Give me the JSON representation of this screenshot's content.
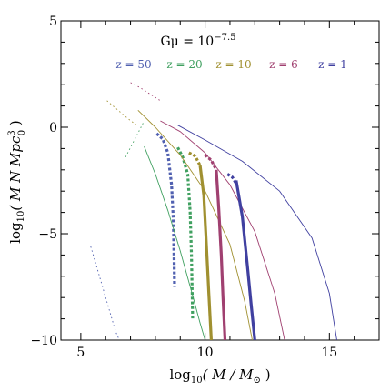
{
  "chart_data": {
    "type": "line",
    "title": "Gμ = 10",
    "title_exponent": "−7.5",
    "xlabel_prefix": "log",
    "xlabel_sub": "10",
    "xlabel_body": "( M / M",
    "xlabel_sun": "⊙",
    "xlabel_close": " )",
    "ylabel_prefix": "log",
    "ylabel_sub": "10",
    "ylabel_body": "( M N Mpc",
    "ylabel_sup": "3",
    "ylabel_subsup": "0",
    "ylabel_close": " )",
    "xlim": [
      4.2,
      17.0
    ],
    "ylim": [
      -10,
      5
    ],
    "xticks": [
      5,
      10,
      15
    ],
    "xtick_labels": [
      "5",
      "10",
      "15"
    ],
    "yticks": [
      -10,
      -5,
      0,
      5
    ],
    "ytick_labels": [
      "−10",
      "−5",
      "0",
      "5"
    ],
    "legend_position": "top",
    "colors": {
      "z50": "#5060b0",
      "z20": "#40a060",
      "z10": "#a09030",
      "z6": "#a04070",
      "z1": "#4040a0"
    },
    "series": [
      {
        "name": "z = 50",
        "color": "#5060b0",
        "style": "dotted-thin",
        "x": [
          5.4,
          5.6,
          5.8,
          6.0,
          6.2,
          6.4,
          6.55
        ],
        "y": [
          -5.6,
          -6.4,
          -7.2,
          -8.0,
          -8.8,
          -9.6,
          -10
        ]
      },
      {
        "name": "z = 50",
        "color": "#5060b0",
        "style": "dotted-thick",
        "x": [
          8.05,
          8.3,
          8.5,
          8.65,
          8.72,
          8.75,
          8.77
        ],
        "y": [
          -0.3,
          -0.55,
          -1.2,
          -2.7,
          -4.3,
          -6.0,
          -7.5
        ]
      },
      {
        "name": "z = 20",
        "color": "#40a060",
        "style": "dotted-thin",
        "x": [
          6.8,
          7.0,
          7.2,
          7.4,
          7.55
        ],
        "y": [
          -1.4,
          -0.95,
          -0.5,
          -0.05,
          0.3
        ]
      },
      {
        "name": "z = 20",
        "color": "#40a060",
        "style": "thin",
        "x": [
          7.55,
          8.0,
          8.5,
          9.0,
          9.5,
          9.8,
          10.0
        ],
        "y": [
          -0.9,
          -2.2,
          -3.9,
          -5.8,
          -7.9,
          -9.2,
          -10
        ]
      },
      {
        "name": "z = 20",
        "color": "#40a060",
        "style": "dotted-thick",
        "x": [
          8.9,
          9.1,
          9.3,
          9.4,
          9.45,
          9.48,
          9.5
        ],
        "y": [
          -0.95,
          -1.4,
          -2.2,
          -4.0,
          -6.0,
          -7.8,
          -9.0
        ]
      },
      {
        "name": "z = 10",
        "color": "#a09030",
        "style": "dotted-thin",
        "x": [
          6.05,
          6.3,
          6.6,
          6.9,
          7.3
        ],
        "y": [
          1.25,
          1.0,
          0.7,
          0.4,
          0.05
        ]
      },
      {
        "name": "z = 10",
        "color": "#a09030",
        "style": "thin",
        "x": [
          7.3,
          8.0,
          9.0,
          10.0,
          11.0,
          11.6,
          11.9
        ],
        "y": [
          0.8,
          0.0,
          -1.3,
          -3.0,
          -5.5,
          -8.2,
          -10
        ]
      },
      {
        "name": "z = 10",
        "color": "#a09030",
        "style": "dotted-thick",
        "x": [
          9.35,
          9.6,
          9.8
        ],
        "y": [
          -1.2,
          -1.35,
          -1.8
        ]
      },
      {
        "name": "z = 10",
        "color": "#a09030",
        "style": "thick",
        "x": [
          9.8,
          9.95,
          10.05,
          10.15,
          10.25
        ],
        "y": [
          -1.8,
          -3.2,
          -5.5,
          -7.8,
          -10
        ]
      },
      {
        "name": "z = 6",
        "color": "#a04070",
        "style": "dotted-thin",
        "x": [
          7.0,
          7.4,
          7.8,
          8.2
        ],
        "y": [
          2.1,
          1.85,
          1.55,
          1.25
        ]
      },
      {
        "name": "z = 6",
        "color": "#a04070",
        "style": "thin",
        "x": [
          8.2,
          9.0,
          10.0,
          11.0,
          12.0,
          12.8,
          13.2
        ],
        "y": [
          0.3,
          -0.2,
          -1.2,
          -2.7,
          -4.9,
          -7.8,
          -10
        ]
      },
      {
        "name": "z = 6",
        "color": "#a04070",
        "style": "dotted-thick",
        "x": [
          10.0,
          10.25,
          10.45
        ],
        "y": [
          -1.3,
          -1.55,
          -2.0
        ]
      },
      {
        "name": "z = 6",
        "color": "#a04070",
        "style": "thick",
        "x": [
          10.45,
          10.55,
          10.65,
          10.72,
          10.8
        ],
        "y": [
          -2.0,
          -3.8,
          -6.0,
          -8.0,
          -10
        ]
      },
      {
        "name": "z = 1",
        "color": "#4040a0",
        "style": "thin",
        "x": [
          8.9,
          10.0,
          11.5,
          13.0,
          14.3,
          15.0,
          15.3
        ],
        "y": [
          0.1,
          -0.6,
          -1.6,
          -3.0,
          -5.2,
          -7.8,
          -10
        ]
      },
      {
        "name": "z = 1",
        "color": "#4040a0",
        "style": "dotted-thick",
        "x": [
          10.9,
          11.1,
          11.25
        ],
        "y": [
          -2.2,
          -2.35,
          -2.65
        ]
      },
      {
        "name": "z = 1",
        "color": "#4040a0",
        "style": "thick",
        "x": [
          11.25,
          11.5,
          11.7,
          11.85,
          12.0
        ],
        "y": [
          -2.5,
          -4.2,
          -6.5,
          -8.3,
          -10
        ]
      }
    ],
    "legend": [
      {
        "label": "z = 50",
        "color": "#5060b0"
      },
      {
        "label": "z = 20",
        "color": "#40a060"
      },
      {
        "label": "z = 10",
        "color": "#a09030"
      },
      {
        "label": "z = 6",
        "color": "#a04070"
      },
      {
        "label": "z = 1",
        "color": "#4040a0"
      }
    ]
  }
}
